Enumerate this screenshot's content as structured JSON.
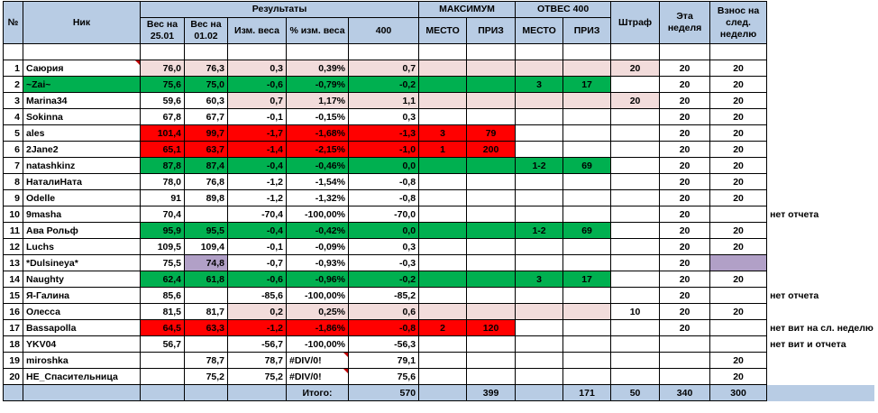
{
  "headers": {
    "num": "№",
    "nick": "Ник",
    "results": "Результаты",
    "w_start": "Вес на 25.01",
    "w_end": "Вес на 01.02",
    "change": "Изм. веса",
    "pct": "% изм. веса",
    "c400": "400",
    "max": "МАКСИМУМ",
    "max_place": "МЕСТО",
    "max_prize": "ПРИЗ",
    "otves": "ОТВЕС 400",
    "ot_place": "МЕСТО",
    "ot_prize": "ПРИЗ",
    "fine": "Штраф",
    "week": "Эта неделя",
    "next": "Взнос на след. неделю"
  },
  "colors": {
    "header": "#b8cce4",
    "green": "#00b050",
    "red": "#ff0000",
    "pink": "#f2dcdb",
    "lavender": "#b1a0c7"
  },
  "rows": [
    {
      "n": "1",
      "nick": "Саюрия",
      "w1": "76,0",
      "w2": "76,3",
      "ch": "0,3",
      "pct": "0,39%",
      "c400": "0,7",
      "mp": "",
      "mz": "",
      "op": "",
      "oz": "",
      "fine": "20",
      "week": "20",
      "next": "20",
      "note": ""
    },
    {
      "n": "2",
      "nick": "~Zai~",
      "w1": "75,6",
      "w2": "75,0",
      "ch": "-0,6",
      "pct": "-0,79%",
      "c400": "-0,2",
      "mp": "",
      "mz": "",
      "op": "3",
      "oz": "17",
      "fine": "",
      "week": "20",
      "next": "20",
      "note": ""
    },
    {
      "n": "3",
      "nick": "Marina34",
      "w1": "59,6",
      "w2": "60,3",
      "ch": "0,7",
      "pct": "1,17%",
      "c400": "1,1",
      "mp": "",
      "mz": "",
      "op": "",
      "oz": "",
      "fine": "20",
      "week": "20",
      "next": "20",
      "note": ""
    },
    {
      "n": "4",
      "nick": "Sokinna",
      "w1": "67,8",
      "w2": "67,7",
      "ch": "-0,1",
      "pct": "-0,15%",
      "c400": "0,3",
      "mp": "",
      "mz": "",
      "op": "",
      "oz": "",
      "fine": "",
      "week": "20",
      "next": "20",
      "note": ""
    },
    {
      "n": "5",
      "nick": "ales",
      "w1": "101,4",
      "w2": "99,7",
      "ch": "-1,7",
      "pct": "-1,68%",
      "c400": "-1,3",
      "mp": "3",
      "mz": "79",
      "op": "",
      "oz": "",
      "fine": "",
      "week": "20",
      "next": "20",
      "note": ""
    },
    {
      "n": "6",
      "nick": "2Jane2",
      "w1": "65,1",
      "w2": "63,7",
      "ch": "-1,4",
      "pct": "-2,15%",
      "c400": "-1,0",
      "mp": "1",
      "mz": "200",
      "op": "",
      "oz": "",
      "fine": "",
      "week": "20",
      "next": "20",
      "note": ""
    },
    {
      "n": "7",
      "nick": "natashkinz",
      "w1": "87,8",
      "w2": "87,4",
      "ch": "-0,4",
      "pct": "-0,46%",
      "c400": "0,0",
      "mp": "",
      "mz": "",
      "op": "1-2",
      "oz": "69",
      "fine": "",
      "week": "20",
      "next": "20",
      "note": ""
    },
    {
      "n": "8",
      "nick": "НаталиНата",
      "w1": "78,0",
      "w2": "76,8",
      "ch": "-1,2",
      "pct": "-1,54%",
      "c400": "-0,8",
      "mp": "",
      "mz": "",
      "op": "",
      "oz": "",
      "fine": "",
      "week": "20",
      "next": "20",
      "note": ""
    },
    {
      "n": "9",
      "nick": "Odelle",
      "w1": "91",
      "w2": "89,8",
      "ch": "-1,2",
      "pct": "-1,32%",
      "c400": "-0,8",
      "mp": "",
      "mz": "",
      "op": "",
      "oz": "",
      "fine": "",
      "week": "20",
      "next": "20",
      "note": ""
    },
    {
      "n": "10",
      "nick": "9masha",
      "w1": "70,4",
      "w2": "",
      "ch": "-70,4",
      "pct": "-100,00%",
      "c400": "-70,0",
      "mp": "",
      "mz": "",
      "op": "",
      "oz": "",
      "fine": "",
      "week": "20",
      "next": "",
      "note": "нет отчета"
    },
    {
      "n": "11",
      "nick": "Ава Рольф",
      "w1": "95,9",
      "w2": "95,5",
      "ch": "-0,4",
      "pct": "-0,42%",
      "c400": "0,0",
      "mp": "",
      "mz": "",
      "op": "1-2",
      "oz": "69",
      "fine": "",
      "week": "20",
      "next": "20",
      "note": ""
    },
    {
      "n": "12",
      "nick": "Luchs",
      "w1": "109,5",
      "w2": "109,4",
      "ch": "-0,1",
      "pct": "-0,09%",
      "c400": "0,3",
      "mp": "",
      "mz": "",
      "op": "",
      "oz": "",
      "fine": "",
      "week": "20",
      "next": "20",
      "note": ""
    },
    {
      "n": "13",
      "nick": "*Dulsineya*",
      "w1": "75,5",
      "w2": "74,8",
      "ch": "-0,7",
      "pct": "-0,93%",
      "c400": "-0,3",
      "mp": "",
      "mz": "",
      "op": "",
      "oz": "",
      "fine": "",
      "week": "20",
      "next": "",
      "note": ""
    },
    {
      "n": "14",
      "nick": "Naughty",
      "w1": "62,4",
      "w2": "61,8",
      "ch": "-0,6",
      "pct": "-0,96%",
      "c400": "-0,2",
      "mp": "",
      "mz": "",
      "op": "3",
      "oz": "17",
      "fine": "",
      "week": "20",
      "next": "20",
      "note": ""
    },
    {
      "n": "15",
      "nick": "Я-Галина",
      "w1": "85,6",
      "w2": "",
      "ch": "-85,6",
      "pct": "-100,00%",
      "c400": "-85,2",
      "mp": "",
      "mz": "",
      "op": "",
      "oz": "",
      "fine": "",
      "week": "20",
      "next": "",
      "note": "нет отчета"
    },
    {
      "n": "16",
      "nick": "Олесса",
      "w1": "81,5",
      "w2": "81,7",
      "ch": "0,2",
      "pct": "0,25%",
      "c400": "0,6",
      "mp": "",
      "mz": "",
      "op": "",
      "oz": "",
      "fine": "10",
      "week": "20",
      "next": "20",
      "note": ""
    },
    {
      "n": "17",
      "nick": "Bassapolla",
      "w1": "64,5",
      "w2": "63,3",
      "ch": "-1,2",
      "pct": "-1,86%",
      "c400": "-0,8",
      "mp": "2",
      "mz": "120",
      "op": "",
      "oz": "",
      "fine": "",
      "week": "20",
      "next": "",
      "note": "нет вит на сл. неделю"
    },
    {
      "n": "18",
      "nick": "YKV04",
      "w1": "56,7",
      "w2": "",
      "ch": "-56,7",
      "pct": "-100,00%",
      "c400": "-56,3",
      "mp": "",
      "mz": "",
      "op": "",
      "oz": "",
      "fine": "",
      "week": "",
      "next": "",
      "note": "нет вит и отчета"
    },
    {
      "n": "19",
      "nick": "miroshka",
      "w1": "",
      "w2": "78,7",
      "ch": "78,7",
      "pct": "#DIV/0!",
      "c400": "79,1",
      "mp": "",
      "mz": "",
      "op": "",
      "oz": "",
      "fine": "",
      "week": "",
      "next": "20",
      "note": ""
    },
    {
      "n": "20",
      "nick": "НЕ_Спасительница",
      "w1": "",
      "w2": "75,2",
      "ch": "75,2",
      "pct": "#DIV/0!",
      "c400": "75,6",
      "mp": "",
      "mz": "",
      "op": "",
      "oz": "",
      "fine": "",
      "week": "",
      "next": "20",
      "note": ""
    }
  ],
  "totals": {
    "label": "Итого:",
    "c400": "570",
    "mz": "399",
    "oz": "171",
    "fine": "50",
    "week": "340",
    "next": "300"
  }
}
